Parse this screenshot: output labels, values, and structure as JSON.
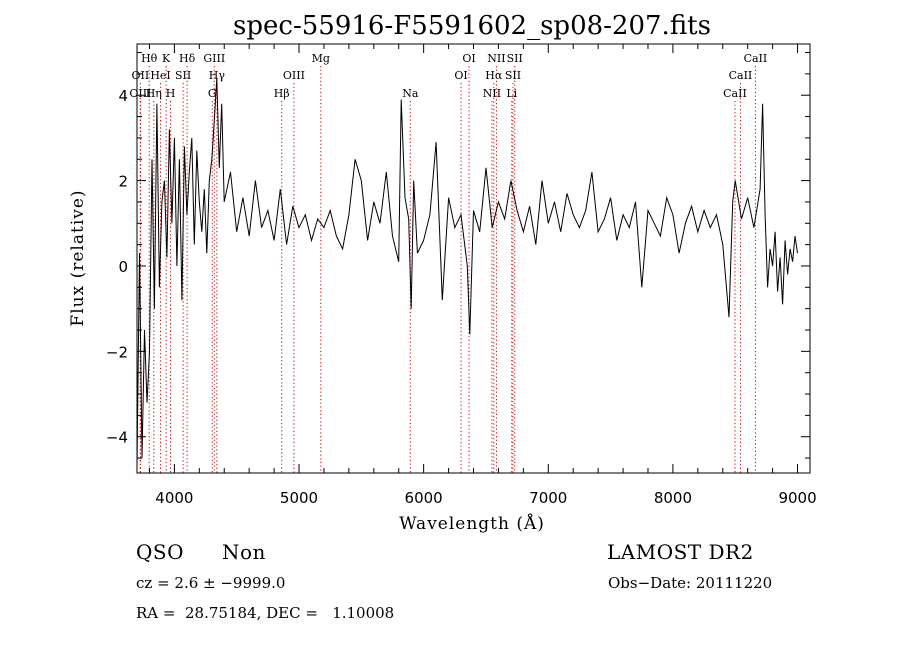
{
  "chart_data": {
    "type": "line",
    "title": "spec-55916-F5591602_sp08-207.fits",
    "xlabel": "Wavelength (Å)",
    "ylabel": "Flux (relative)",
    "xlim": [
      3700,
      9100
    ],
    "ylim": [
      -4.85,
      5.2
    ],
    "x_ticks": [
      4000,
      5000,
      6000,
      7000,
      8000,
      9000
    ],
    "x_tick_labels": [
      "4000",
      "5000",
      "6000",
      "7000",
      "8000",
      "9000"
    ],
    "y_ticks": [
      -4,
      -2,
      0,
      2,
      4
    ],
    "y_tick_labels": [
      "−4",
      "−2",
      "0",
      "2",
      "4"
    ],
    "grid": false,
    "series": [
      {
        "x": [
          3700,
          3720,
          3740,
          3760,
          3780,
          3800,
          3820,
          3840,
          3860,
          3880,
          3900,
          3920,
          3940,
          3960,
          3980,
          4000,
          4020,
          4040,
          4060,
          4080,
          4100,
          4120,
          4140,
          4160,
          4180,
          4200,
          4220,
          4240,
          4260,
          4280,
          4300,
          4320,
          4340,
          4360,
          4380,
          4400,
          4450,
          4500,
          4550,
          4600,
          4650,
          4700,
          4750,
          4800,
          4850,
          4900,
          4950,
          5000,
          5050,
          5100,
          5150,
          5200,
          5250,
          5300,
          5350,
          5400,
          5450,
          5500,
          5550,
          5600,
          5650,
          5700,
          5750,
          5800,
          5820,
          5850,
          5880,
          5900,
          5920,
          5950,
          6000,
          6050,
          6100,
          6150,
          6200,
          6250,
          6300,
          6350,
          6370,
          6400,
          6450,
          6500,
          6550,
          6600,
          6650,
          6700,
          6750,
          6800,
          6850,
          6900,
          6950,
          7000,
          7050,
          7100,
          7150,
          7200,
          7250,
          7300,
          7350,
          7400,
          7450,
          7500,
          7550,
          7600,
          7650,
          7700,
          7750,
          7800,
          7850,
          7900,
          7950,
          8000,
          8050,
          8100,
          8150,
          8200,
          8250,
          8300,
          8350,
          8400,
          8450,
          8480,
          8500,
          8550,
          8600,
          8650,
          8700,
          8720,
          8740,
          8760,
          8780,
          8800,
          8820,
          8840,
          8860,
          8880,
          8900,
          8920,
          8940,
          8960,
          8980,
          9000
        ],
        "y": [
          -4.7,
          0.3,
          -4.5,
          -1.5,
          -3.2,
          -2.0,
          2.5,
          -1.0,
          3.8,
          -0.5,
          1.5,
          2.0,
          0.2,
          3.2,
          1.0,
          3.0,
          0.0,
          2.5,
          -0.8,
          2.8,
          1.2,
          2.2,
          3.0,
          0.5,
          2.7,
          1.5,
          0.8,
          1.8,
          0.3,
          2.0,
          2.5,
          3.4,
          4.4,
          2.3,
          3.8,
          1.5,
          2.2,
          0.8,
          1.6,
          0.7,
          2.0,
          0.9,
          1.3,
          0.6,
          1.8,
          0.5,
          1.4,
          0.9,
          1.2,
          0.6,
          1.1,
          0.9,
          1.3,
          0.7,
          0.4,
          1.2,
          2.5,
          2.0,
          0.6,
          1.5,
          1.0,
          2.2,
          0.7,
          0.1,
          3.9,
          1.6,
          1.1,
          -1.0,
          2.0,
          0.3,
          0.6,
          1.2,
          2.9,
          -0.8,
          1.6,
          0.9,
          1.2,
          0.0,
          -1.6,
          1.3,
          0.8,
          2.3,
          0.9,
          1.5,
          1.1,
          2.0,
          1.3,
          0.8,
          1.4,
          0.5,
          2.0,
          1.0,
          1.5,
          0.8,
          1.7,
          1.2,
          0.9,
          1.3,
          2.2,
          0.8,
          1.1,
          1.6,
          0.6,
          1.2,
          0.9,
          1.5,
          -0.5,
          1.3,
          1.0,
          0.7,
          1.6,
          1.2,
          0.3,
          1.0,
          1.4,
          0.8,
          1.3,
          0.9,
          1.2,
          0.5,
          -1.2,
          1.5,
          2.0,
          1.1,
          1.6,
          0.9,
          1.8,
          3.8,
          1.2,
          -0.5,
          0.4,
          0.0,
          0.8,
          -0.6,
          0.2,
          -0.9,
          0.6,
          -0.2,
          0.4,
          0.1,
          0.7,
          0.3
        ]
      }
    ],
    "line_markers": [
      {
        "label": "Hθ",
        "x": 3798,
        "row": 0
      },
      {
        "label": "K",
        "x": 3934,
        "row": 0
      },
      {
        "label": "Hδ",
        "x": 4102,
        "row": 0
      },
      {
        "label": "GIII",
        "x": 4320,
        "row": 0
      },
      {
        "label": "Mg",
        "x": 5175,
        "row": 0
      },
      {
        "label": "OI",
        "x": 6364,
        "row": 0
      },
      {
        "label": "NII",
        "x": 6584,
        "row": 0
      },
      {
        "label": "SII",
        "x": 6731,
        "row": 0
      },
      {
        "label": "CaII",
        "x": 8662,
        "row": 0
      },
      {
        "label": "OII",
        "x": 3727,
        "row": 1
      },
      {
        "label": "HeI",
        "x": 3889,
        "row": 1
      },
      {
        "label": "SII",
        "x": 4070,
        "row": 1
      },
      {
        "label": "Hγ",
        "x": 4341,
        "row": 1
      },
      {
        "label": "OIII",
        "x": 4959,
        "row": 1
      },
      {
        "label": "OI",
        "x": 6300,
        "row": 1
      },
      {
        "label": "Hα",
        "x": 6563,
        "row": 1
      },
      {
        "label": "SII",
        "x": 6717,
        "row": 1
      },
      {
        "label": "CaII",
        "x": 8542,
        "row": 1
      },
      {
        "label": "OIII",
        "x": 3727,
        "row": 2
      },
      {
        "label": "Hη",
        "x": 3835,
        "row": 2
      },
      {
        "label": "H",
        "x": 3969,
        "row": 2
      },
      {
        "label": "G",
        "x": 4304,
        "row": 2
      },
      {
        "label": "Hβ",
        "x": 4861,
        "row": 2
      },
      {
        "label": "Na",
        "x": 5893,
        "row": 2
      },
      {
        "label": "NII",
        "x": 6548,
        "row": 2
      },
      {
        "label": "Li",
        "x": 6707,
        "row": 2
      },
      {
        "label": "CaII",
        "x": 8498,
        "row": 2
      }
    ],
    "colors": {
      "spectrum": "#000000",
      "markers": "#cc0000",
      "axes": "#000000"
    }
  },
  "info": {
    "class": "QSO",
    "subclass": "Non",
    "survey": "LAMOST DR2",
    "redshift": "cz = 2.6 ± −9999.0",
    "obs_date": "Obs−Date: 20111220",
    "coords": "RA =  28.75184, DEC =   1.10008"
  }
}
